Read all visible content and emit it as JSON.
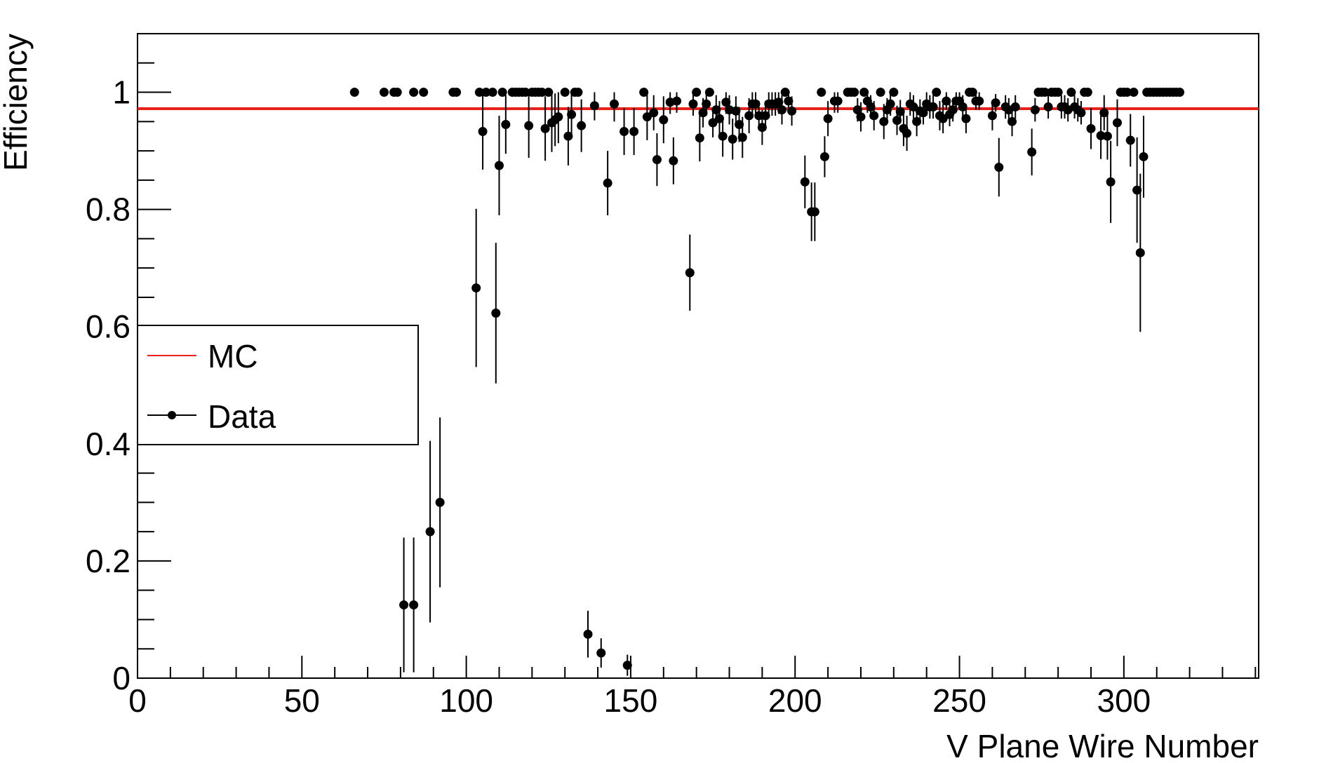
{
  "chart_data": {
    "type": "scatter",
    "xlabel": "V Plane Wire Number",
    "ylabel": "Efficiency",
    "xlim": [
      0,
      341
    ],
    "ylim": [
      0,
      1.1
    ],
    "x_ticks": [
      "0",
      "50",
      "100",
      "150",
      "200",
      "250",
      "300"
    ],
    "y_ticks": [
      "0",
      "0.2",
      "0.4",
      "0.6",
      "0.8",
      "1"
    ],
    "legend": {
      "placement": "middle-left",
      "entries": [
        "MC",
        "Data"
      ]
    },
    "grid": false,
    "colors": {
      "mc": "#e8211b",
      "data": "#000000"
    },
    "series": [
      {
        "name": "MC",
        "type": "line",
        "y_constant": 0.972
      },
      {
        "name": "Data",
        "type": "scatter-with-errorbars",
        "points": [
          [
            66,
            1,
            0
          ],
          [
            75,
            1,
            0
          ],
          [
            78,
            1,
            0
          ],
          [
            79,
            1,
            0
          ],
          [
            84,
            1,
            0
          ],
          [
            87,
            1,
            0
          ],
          [
            96,
            1,
            0
          ],
          [
            97,
            1,
            0
          ],
          [
            81,
            0.125,
            0.115
          ],
          [
            84,
            0.125,
            0.115
          ],
          [
            89,
            0.25,
            0.155
          ],
          [
            92,
            0.3,
            0.145
          ],
          [
            103,
            0.666,
            0.135
          ],
          [
            104,
            1,
            0
          ],
          [
            105,
            0.933,
            0.065
          ],
          [
            106,
            1,
            0
          ],
          [
            108,
            1,
            0
          ],
          [
            109,
            0.623,
            0.12
          ],
          [
            110,
            0.875,
            0.085
          ],
          [
            111,
            1,
            0
          ],
          [
            112,
            0.945,
            0.05
          ],
          [
            114,
            1,
            0
          ],
          [
            115,
            1,
            0
          ],
          [
            116,
            1,
            0
          ],
          [
            117,
            1,
            0
          ],
          [
            118,
            1,
            0
          ],
          [
            119,
            0.943,
            0.055
          ],
          [
            120,
            1,
            0
          ],
          [
            121,
            1,
            0
          ],
          [
            122,
            1,
            0
          ],
          [
            123,
            1,
            0
          ],
          [
            124,
            0.938,
            0.055
          ],
          [
            125,
            1,
            0
          ],
          [
            126,
            0.948,
            0.05
          ],
          [
            127,
            0.953,
            0.045
          ],
          [
            128,
            0.958,
            0.045
          ],
          [
            130,
            1,
            0
          ],
          [
            131,
            0.925,
            0.05
          ],
          [
            132,
            0.962,
            0.04
          ],
          [
            133,
            1,
            0
          ],
          [
            134,
            1,
            0
          ],
          [
            135,
            0.943,
            0.045
          ],
          [
            137,
            0.075,
            0.04
          ],
          [
            139,
            0.977,
            0.025
          ],
          [
            141,
            0.043,
            0.025
          ],
          [
            143,
            0.845,
            0.055
          ],
          [
            145,
            0.98,
            0.03
          ],
          [
            148,
            0.933,
            0.04
          ],
          [
            149,
            0.022,
            0.018
          ],
          [
            151,
            0.933,
            0.04
          ],
          [
            154,
            1,
            0
          ],
          [
            155,
            0.958,
            0.04
          ],
          [
            157,
            0.965,
            0.03
          ],
          [
            158,
            0.885,
            0.045
          ],
          [
            160,
            0.953,
            0.04
          ],
          [
            162,
            0.983,
            0.02
          ],
          [
            163,
            0.883,
            0.04
          ],
          [
            164,
            0.985,
            0.02
          ],
          [
            168,
            0.692,
            0.065
          ],
          [
            169,
            0.98,
            0.02
          ],
          [
            170,
            1,
            0
          ],
          [
            171,
            0.922,
            0.04
          ],
          [
            172,
            0.965,
            0.025
          ],
          [
            173,
            0.98,
            0.02
          ],
          [
            174,
            1,
            0
          ],
          [
            175,
            0.948,
            0.025
          ],
          [
            176,
            0.97,
            0.025
          ],
          [
            177,
            0.955,
            0.03
          ],
          [
            178,
            0.925,
            0.035
          ],
          [
            179,
            0.983,
            0.02
          ],
          [
            180,
            0.97,
            0.025
          ],
          [
            181,
            0.92,
            0.035
          ],
          [
            182,
            0.968,
            0.025
          ],
          [
            183,
            0.945,
            0.03
          ],
          [
            184,
            0.923,
            0.035
          ],
          [
            186,
            0.96,
            0.03
          ],
          [
            187,
            0.98,
            0.02
          ],
          [
            188,
            0.98,
            0.02
          ],
          [
            189,
            0.96,
            0.025
          ],
          [
            190,
            0.94,
            0.03
          ],
          [
            191,
            0.96,
            0.025
          ],
          [
            192,
            0.98,
            0.02
          ],
          [
            193,
            0.98,
            0.02
          ],
          [
            194,
            0.98,
            0.02
          ],
          [
            195,
            0.983,
            0.02
          ],
          [
            196,
            0.97,
            0.025
          ],
          [
            197,
            1,
            0
          ],
          [
            198,
            0.985,
            0.02
          ],
          [
            199,
            0.968,
            0.025
          ],
          [
            203,
            0.847,
            0.045
          ],
          [
            205,
            0.796,
            0.05
          ],
          [
            206,
            0.796,
            0.05
          ],
          [
            208,
            1,
            0
          ],
          [
            209,
            0.89,
            0.035
          ],
          [
            210,
            0.955,
            0.03
          ],
          [
            212,
            0.985,
            0.02
          ],
          [
            213,
            0.985,
            0.02
          ],
          [
            216,
            1,
            0
          ],
          [
            217,
            1,
            0
          ],
          [
            218,
            1,
            0
          ],
          [
            219,
            0.97,
            0.02
          ],
          [
            220,
            0.958,
            0.025
          ],
          [
            221,
            1,
            0
          ],
          [
            222,
            0.985,
            0.02
          ],
          [
            223,
            0.975,
            0.02
          ],
          [
            224,
            0.96,
            0.025
          ],
          [
            226,
            1,
            0
          ],
          [
            227,
            0.95,
            0.03
          ],
          [
            228,
            0.97,
            0.02
          ],
          [
            229,
            0.98,
            0.02
          ],
          [
            230,
            1,
            0
          ],
          [
            231,
            0.952,
            0.025
          ],
          [
            232,
            0.967,
            0.02
          ],
          [
            233,
            0.938,
            0.03
          ],
          [
            234,
            0.93,
            0.03
          ],
          [
            235,
            0.98,
            0.02
          ],
          [
            236,
            0.975,
            0.02
          ],
          [
            237,
            0.95,
            0.025
          ],
          [
            238,
            0.968,
            0.02
          ],
          [
            239,
            0.965,
            0.02
          ],
          [
            240,
            0.98,
            0.02
          ],
          [
            241,
            0.975,
            0.02
          ],
          [
            242,
            0.975,
            0.02
          ],
          [
            243,
            1,
            0
          ],
          [
            244,
            0.96,
            0.025
          ],
          [
            245,
            0.955,
            0.025
          ],
          [
            246,
            0.985,
            0.015
          ],
          [
            247,
            0.962,
            0.02
          ],
          [
            248,
            0.97,
            0.02
          ],
          [
            249,
            0.985,
            0.015
          ],
          [
            250,
            0.985,
            0.015
          ],
          [
            251,
            0.975,
            0.02
          ],
          [
            252,
            0.955,
            0.025
          ],
          [
            253,
            1,
            0
          ],
          [
            254,
            1,
            0
          ],
          [
            255,
            0.985,
            0.015
          ],
          [
            256,
            0.985,
            0.015
          ],
          [
            260,
            0.96,
            0.025
          ],
          [
            261,
            0.982,
            0.015
          ],
          [
            262,
            0.872,
            0.05
          ],
          [
            264,
            0.975,
            0.02
          ],
          [
            265,
            0.97,
            0.02
          ],
          [
            266,
            0.95,
            0.025
          ],
          [
            267,
            0.975,
            0.02
          ],
          [
            272,
            0.898,
            0.04
          ],
          [
            273,
            0.97,
            0.02
          ],
          [
            274,
            1,
            0
          ],
          [
            275,
            1,
            0
          ],
          [
            276,
            1,
            0
          ],
          [
            277,
            0.975,
            0.02
          ],
          [
            278,
            1,
            0
          ],
          [
            279,
            1,
            0
          ],
          [
            280,
            1,
            0
          ],
          [
            281,
            0.975,
            0.02
          ],
          [
            282,
            0.975,
            0.02
          ],
          [
            283,
            0.97,
            0.02
          ],
          [
            284,
            1,
            0
          ],
          [
            285,
            0.975,
            0.02
          ],
          [
            286,
            0.97,
            0.02
          ],
          [
            287,
            0.965,
            0.02
          ],
          [
            288,
            1,
            0
          ],
          [
            289,
            1,
            0
          ],
          [
            290,
            0.938,
            0.035
          ],
          [
            293,
            0.926,
            0.04
          ],
          [
            294,
            0.965,
            0.03
          ],
          [
            295,
            0.925,
            0.04
          ],
          [
            296,
            0.847,
            0.07
          ],
          [
            298,
            0.948,
            0.04
          ],
          [
            299,
            1,
            0
          ],
          [
            300,
            1,
            0
          ],
          [
            301,
            1,
            0
          ],
          [
            302,
            0.918,
            0.045
          ],
          [
            303,
            1,
            0
          ],
          [
            304,
            0.833,
            0.09
          ],
          [
            305,
            0.726,
            0.135
          ],
          [
            306,
            0.89,
            0.07
          ],
          [
            307,
            1,
            0
          ],
          [
            308,
            1,
            0
          ],
          [
            309,
            1,
            0
          ],
          [
            310,
            1,
            0
          ],
          [
            311,
            1,
            0
          ],
          [
            312,
            1,
            0
          ],
          [
            313,
            1,
            0
          ],
          [
            314,
            1,
            0
          ],
          [
            315,
            1,
            0
          ],
          [
            316,
            1,
            0
          ],
          [
            317,
            1,
            0
          ]
        ]
      }
    ]
  }
}
